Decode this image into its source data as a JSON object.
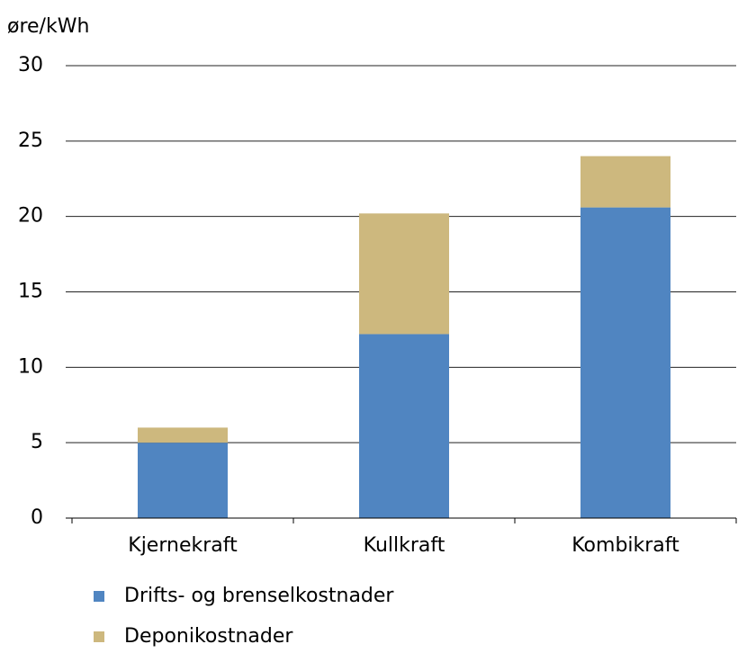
{
  "chart_data": {
    "type": "stacked_bar",
    "y_label": "øre/kWh",
    "categories": [
      "Kjernekraft",
      "Kullkraft",
      "Kombikraft"
    ],
    "series": [
      {
        "name": "Drifts- og brenselkostnader",
        "color": "#5085c1",
        "values": [
          5.0,
          12.2,
          20.6
        ]
      },
      {
        "name": "Deponikostnader",
        "color": "#cdb87e",
        "values": [
          1.0,
          8.0,
          3.4
        ]
      }
    ],
    "ylim": [
      0,
      30
    ],
    "yticks": [
      0,
      5,
      10,
      15,
      20,
      25,
      30
    ],
    "grid": true,
    "legend": "bottom"
  }
}
